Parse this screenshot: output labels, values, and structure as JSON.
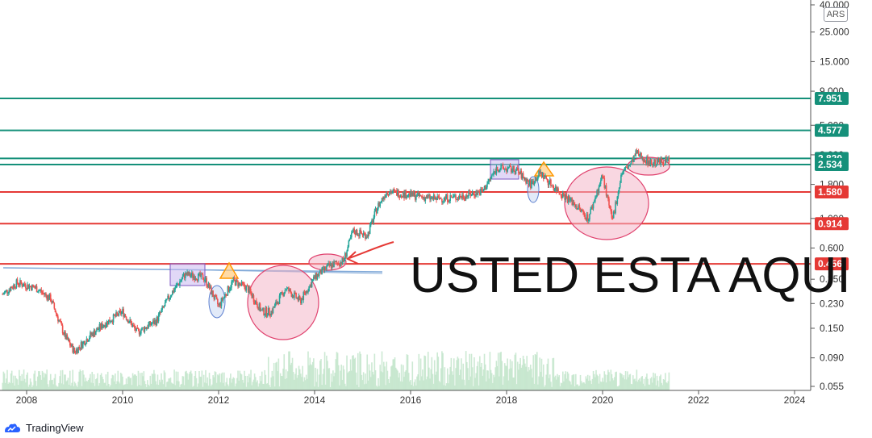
{
  "branding": {
    "name": "TradingView"
  },
  "currency": "ARS",
  "annotation_text": "USTED ESTA AQUI",
  "colors": {
    "green_level": "#15907a",
    "red_level": "#e53935",
    "blue_line": "#81a9d8",
    "pink_fill": "#f4b6c8",
    "pink_stroke": "#e0426e",
    "purple_fill": "#c9b8f0",
    "purple_stroke": "#7e57c2",
    "orange": "#ff9800",
    "arrow_red": "#e53935",
    "candle_up": "#26a69a",
    "candle_down": "#ef5350",
    "volume": "#bfe3c8"
  },
  "chart_data": {
    "type": "candlestick",
    "title": "",
    "xlabel": "",
    "ylabel": "",
    "log_scale": true,
    "grid": false,
    "x_ticks": [
      "2008",
      "2010",
      "2012",
      "2014",
      "2016",
      "2018",
      "2020",
      "2022",
      "2024"
    ],
    "y_ticks": [
      "40.000",
      "25.000",
      "15.000",
      "9.000",
      "5.000",
      "3.000",
      "1.800",
      "1.000",
      "0.600",
      "0.350",
      "0.230",
      "0.150",
      "0.090",
      "0.055"
    ],
    "ylim": [
      0.055,
      40.0
    ],
    "horizontal_levels": [
      {
        "label": "7.951",
        "value": 7.951,
        "color": "green"
      },
      {
        "label": "4.577",
        "value": 4.577,
        "color": "green"
      },
      {
        "label": "2.820",
        "value": 2.82,
        "color": "green"
      },
      {
        "label": "2.534",
        "value": 2.534,
        "color": "green"
      },
      {
        "label": "1.580",
        "value": 1.58,
        "color": "red"
      },
      {
        "label": "0.914",
        "value": 0.914,
        "color": "red"
      },
      {
        "label": "0.456",
        "value": 0.456,
        "color": "red"
      }
    ],
    "price_series": [
      {
        "x": 2007.5,
        "y": 0.27
      },
      {
        "x": 2007.8,
        "y": 0.33
      },
      {
        "x": 2008.2,
        "y": 0.3
      },
      {
        "x": 2008.5,
        "y": 0.25
      },
      {
        "x": 2008.8,
        "y": 0.13
      },
      {
        "x": 2009.0,
        "y": 0.1
      },
      {
        "x": 2009.3,
        "y": 0.13
      },
      {
        "x": 2009.6,
        "y": 0.16
      },
      {
        "x": 2010.0,
        "y": 0.2
      },
      {
        "x": 2010.3,
        "y": 0.14
      },
      {
        "x": 2010.7,
        "y": 0.17
      },
      {
        "x": 2011.0,
        "y": 0.27
      },
      {
        "x": 2011.3,
        "y": 0.38
      },
      {
        "x": 2011.7,
        "y": 0.36
      },
      {
        "x": 2012.0,
        "y": 0.22
      },
      {
        "x": 2012.3,
        "y": 0.34
      },
      {
        "x": 2012.6,
        "y": 0.3
      },
      {
        "x": 2012.9,
        "y": 0.2
      },
      {
        "x": 2013.1,
        "y": 0.2
      },
      {
        "x": 2013.4,
        "y": 0.3
      },
      {
        "x": 2013.7,
        "y": 0.24
      },
      {
        "x": 2014.0,
        "y": 0.36
      },
      {
        "x": 2014.3,
        "y": 0.44
      },
      {
        "x": 2014.6,
        "y": 0.48
      },
      {
        "x": 2014.8,
        "y": 0.8
      },
      {
        "x": 2015.1,
        "y": 0.75
      },
      {
        "x": 2015.3,
        "y": 1.2
      },
      {
        "x": 2015.5,
        "y": 1.6
      },
      {
        "x": 2016.0,
        "y": 1.5
      },
      {
        "x": 2016.5,
        "y": 1.4
      },
      {
        "x": 2017.0,
        "y": 1.45
      },
      {
        "x": 2017.5,
        "y": 1.6
      },
      {
        "x": 2017.8,
        "y": 2.4
      },
      {
        "x": 2018.2,
        "y": 2.3
      },
      {
        "x": 2018.5,
        "y": 1.8
      },
      {
        "x": 2018.7,
        "y": 2.2
      },
      {
        "x": 2019.0,
        "y": 1.7
      },
      {
        "x": 2019.4,
        "y": 1.3
      },
      {
        "x": 2019.7,
        "y": 1.0
      },
      {
        "x": 2020.0,
        "y": 2.1
      },
      {
        "x": 2020.2,
        "y": 0.95
      },
      {
        "x": 2020.4,
        "y": 2.2
      },
      {
        "x": 2020.6,
        "y": 2.6
      },
      {
        "x": 2020.7,
        "y": 3.1
      },
      {
        "x": 2021.0,
        "y": 2.6
      },
      {
        "x": 2021.3,
        "y": 2.7
      },
      {
        "x": 2021.4,
        "y": 2.75
      }
    ]
  }
}
